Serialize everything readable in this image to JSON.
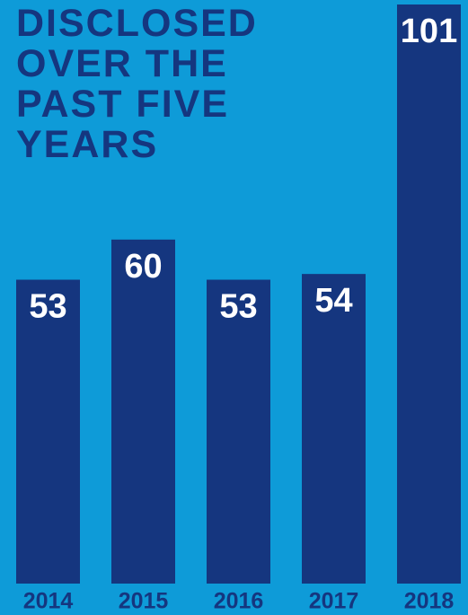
{
  "chart_data": {
    "type": "bar",
    "title": "DISCLOSED OVER THE PAST FIVE YEARS",
    "categories": [
      "2014",
      "2015",
      "2016",
      "2017",
      "2018"
    ],
    "values": [
      53,
      60,
      53,
      54,
      101
    ],
    "color": "#15367f"
  }
}
